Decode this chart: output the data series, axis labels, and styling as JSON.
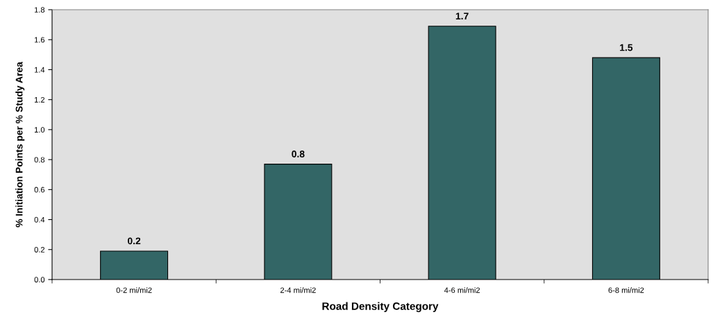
{
  "chart_data": {
    "type": "bar",
    "xlabel": "Road Density Category",
    "ylabel": "% Initiation Points per % Study Area",
    "categories": [
      "0-2 mi/mi2",
      "2-4 mi/mi2",
      "4-6 mi/mi2",
      "6-8 mi/mi2"
    ],
    "values": [
      0.19,
      0.77,
      1.69,
      1.48
    ],
    "value_labels": [
      "0.2",
      "0.8",
      "1.7",
      "1.5"
    ],
    "color": "#336666",
    "ylim": [
      0,
      1.8
    ],
    "yticks": [
      {
        "value": 0,
        "label": "0.0"
      },
      0.2,
      0.4,
      0.6,
      0.8,
      {
        "value": 1,
        "label": "1.0"
      },
      1.2,
      1.4,
      1.6,
      1.8
    ],
    "grid": false
  }
}
